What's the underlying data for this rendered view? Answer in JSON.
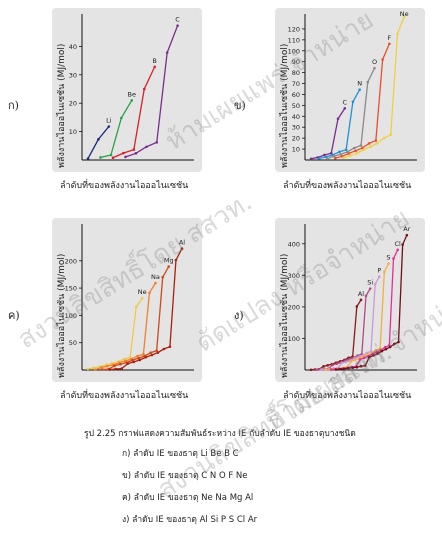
{
  "panels": [
    {
      "label": "ก)",
      "ylabel": "พลังงานไอออไนเซชัน (MJ/mol)",
      "xlabel": "ลำดับที่ของพลังงานไอออไนเซชัน"
    },
    {
      "label": "ข)",
      "ylabel": "พลังงานไอออไนเซชัน (MJ/mol)",
      "xlabel": "ลำดับที่ของพลังงานไอออไนเซชัน"
    },
    {
      "label": "ค)",
      "ylabel": "พลังงานไอออไนเซชัน (MJ/mol)",
      "xlabel": "ลำดับที่ของพลังงานไอออไนเซชัน"
    },
    {
      "label": "ง)",
      "ylabel": "พลังงานไอออไนเซชัน (MJ/mol)",
      "xlabel": "ลำดับที่ของพลังงานไอออไนเซชัน"
    }
  ],
  "caption": "รูป 2.25  กราฟแสดงความสัมพันธ์ระหว่าง IE กับลำดับ IE ของธาตุบางชนิด",
  "list": [
    "ก)  ลำดับ IE ของธาตุ Li Be B C",
    "ข)  ลำดับ IE ของธาตุ C N O F Ne",
    "ค)  ลำดับ IE ของธาตุ Ne Na Mg Al",
    "ง)  ลำดับ IE ของธาตุ Al Si P S Cl Ar"
  ],
  "watermark": [
    "ห้ามเผยแพร่ จำหน่าย",
    "สงวนลิขสิทธิ์โดย สสวท.",
    "ดัดแปลง หรือจำหน่าย",
    "ห้ามเผยแพร่ จำหน่าย",
    "สงวนลิขสิทธิ์โดย สสวท."
  ],
  "chart_data": [
    {
      "type": "line",
      "ylim": [
        0,
        50
      ],
      "yticks": [
        10,
        20,
        30,
        40
      ],
      "series": [
        {
          "name": "Li",
          "color": "#1f2a7a",
          "values": [
            0.52,
            7.3,
            11.8
          ]
        },
        {
          "name": "Be",
          "color": "#2da04a",
          "values": [
            0.9,
            1.76,
            14.8,
            21.0
          ]
        },
        {
          "name": "B",
          "color": "#d8202a",
          "values": [
            0.8,
            2.43,
            3.66,
            25.0,
            32.8
          ]
        },
        {
          "name": "C",
          "color": "#7b2d8e",
          "values": [
            1.09,
            2.35,
            4.62,
            6.22,
            37.8,
            47.3
          ]
        }
      ]
    },
    {
      "type": "line",
      "ylim": [
        0,
        130
      ],
      "yticks": [
        10,
        20,
        30,
        40,
        50,
        60,
        70,
        80,
        90,
        100,
        110,
        120
      ],
      "series": [
        {
          "name": "C",
          "color": "#7b2d8e",
          "values": [
            1.09,
            2.35,
            4.62,
            6.22,
            37.8,
            47.3
          ]
        },
        {
          "name": "N",
          "color": "#1e90d6",
          "values": [
            1.4,
            2.86,
            4.58,
            7.48,
            9.44,
            53.3,
            64.4
          ]
        },
        {
          "name": "O",
          "color": "#8a8a8a",
          "values": [
            1.31,
            3.39,
            5.3,
            7.47,
            10.99,
            13.33,
            71.3,
            84.1
          ]
        },
        {
          "name": "F",
          "color": "#e8502a",
          "values": [
            1.68,
            3.37,
            6.05,
            8.41,
            11.02,
            15.16,
            17.87,
            92.0,
            106.4
          ]
        },
        {
          "name": "Ne",
          "color": "#f0d040",
          "values": [
            2.08,
            3.95,
            6.12,
            9.37,
            12.18,
            15.24,
            20.0,
            23.07,
            115.4,
            131.4
          ]
        }
      ]
    },
    {
      "type": "line",
      "ylim": [
        0,
        260
      ],
      "yticks": [
        50,
        100,
        150,
        200
      ],
      "series": [
        {
          "name": "Ne",
          "color": "#f0c84a",
          "values": [
            2.08,
            3.95,
            6.12,
            9.37,
            12.18,
            15.24,
            20.0,
            23.07,
            115.4,
            131.4
          ]
        },
        {
          "name": "Na",
          "color": "#f08030",
          "values": [
            0.5,
            4.56,
            6.91,
            9.54,
            13.35,
            16.61,
            20.11,
            25.49,
            28.93,
            141.4,
            159.1
          ]
        },
        {
          "name": "Mg",
          "color": "#d04818",
          "values": [
            0.74,
            1.45,
            7.73,
            10.54,
            13.63,
            18.0,
            21.7,
            25.66,
            31.65,
            35.46,
            169.99,
            189.4
          ]
        },
        {
          "name": "Al",
          "color": "#a82010",
          "values": [
            0.58,
            1.82,
            2.74,
            11.58,
            14.84,
            18.38,
            23.33,
            27.47,
            31.85,
            38.47,
            42.65,
            201.3,
            222.3
          ]
        }
      ]
    },
    {
      "type": "line",
      "ylim": [
        0,
        450
      ],
      "yticks": [
        100,
        200,
        300,
        400
      ],
      "series": [
        {
          "name": "Al",
          "color": "#8a1a18",
          "values": [
            0.58,
            1.82,
            2.74,
            11.58,
            14.84,
            18.38,
            23.33,
            27.47,
            31.85,
            38.47,
            42.65,
            201.3,
            222.3
          ]
        },
        {
          "name": "Si",
          "color": "#b04a86",
          "values": [
            0.79,
            1.58,
            3.23,
            4.36,
            16.09,
            19.8,
            23.78,
            29.25,
            33.88,
            38.73,
            45.96,
            50.5,
            235.2,
            257.9
          ]
        },
        {
          "name": "P",
          "color": "#c89ad8",
          "values": [
            1.01,
            1.9,
            2.91,
            4.96,
            6.27,
            22.23,
            25.4,
            29.85,
            35.87,
            40.96,
            46.26,
            54.07,
            59.02,
            271.8,
            296.2
          ]
        },
        {
          "name": "S",
          "color": "#f0b040",
          "values": [
            1.0,
            2.25,
            3.36,
            4.56,
            7.01,
            8.5,
            27.11,
            31.67,
            36.58,
            43.14,
            48.71,
            54.46,
            62.93,
            68.23,
            311.0,
            337.1
          ]
        },
        {
          "name": "Cl",
          "color": "#e03098",
          "values": [
            1.25,
            2.3,
            3.82,
            5.16,
            6.54,
            9.36,
            11.02,
            33.6,
            38.6,
            43.96,
            51.07,
            57.12,
            63.36,
            72.34,
            78.1,
            352.99,
            380.76
          ]
        },
        {
          "name": "Ar",
          "color": "#701018",
          "values": [
            1.52,
            2.67,
            3.93,
            5.77,
            7.24,
            8.78,
            11.99,
            13.84,
            40.76,
            46.19,
            52.0,
            59.65,
            66.2,
            72.92,
            82.47,
            88.58,
            397.6,
            427.07
          ]
        }
      ]
    }
  ]
}
